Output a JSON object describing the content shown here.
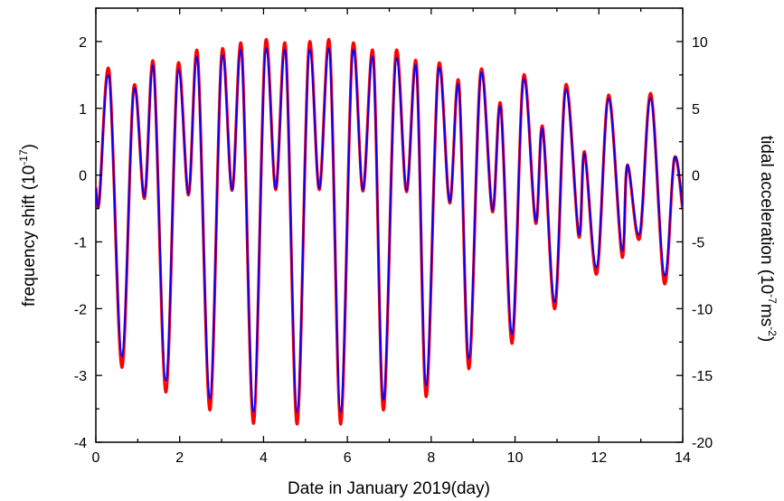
{
  "chart_data": {
    "type": "line",
    "xlabel": "Date in January 2019(day)",
    "ylabel_left": {
      "text": "frequency shift (10",
      "sup": "-17",
      "suffix": ")"
    },
    "ylabel_right": {
      "text": "tidal acceleration (10",
      "sup1": "-7",
      "mid": "ms",
      "sup2": "-2",
      "suffix": ")"
    },
    "xlim": [
      0,
      14
    ],
    "ylim_left": [
      -4,
      2.5
    ],
    "ylim_right": [
      -20,
      12.5
    ],
    "x_ticks": [
      0,
      2,
      4,
      6,
      8,
      10,
      12,
      14
    ],
    "y_ticks_left": [
      -4,
      -3,
      -2,
      -1,
      0,
      1,
      2
    ],
    "y_ticks_right": [
      -20,
      -15,
      -10,
      -5,
      0,
      5,
      10
    ],
    "grid": false,
    "legend": "none",
    "series": [
      {
        "color": "#ff0000",
        "x": [
          0.0,
          0.08,
          0.32,
          0.62,
          0.9,
          1.16,
          1.38,
          1.67,
          1.95,
          2.21,
          2.43,
          2.72,
          3.0,
          3.25,
          3.48,
          3.76,
          4.04,
          4.29,
          4.53,
          4.8,
          5.08,
          5.33,
          5.58,
          5.84,
          6.12,
          6.37,
          6.62,
          6.86,
          7.15,
          7.41,
          7.65,
          7.88,
          8.17,
          8.44,
          8.66,
          8.9,
          9.18,
          9.46,
          9.66,
          9.93,
          10.2,
          10.49,
          10.66,
          10.95,
          11.21,
          11.52,
          11.66,
          11.95,
          12.23,
          12.55,
          12.68,
          12.97,
          13.24,
          13.56,
          13.8,
          14.0
        ],
        "y": [
          -0.18,
          -0.4,
          1.55,
          -2.88,
          1.3,
          -0.35,
          1.65,
          -3.25,
          1.62,
          -0.3,
          1.8,
          -3.52,
          1.82,
          -0.23,
          1.9,
          -3.72,
          1.95,
          -0.22,
          1.9,
          -3.73,
          1.92,
          -0.22,
          1.95,
          -3.73,
          1.9,
          -0.24,
          1.8,
          -3.52,
          1.8,
          -0.25,
          1.65,
          -3.32,
          1.62,
          -0.42,
          1.38,
          -2.9,
          1.55,
          -0.55,
          1.05,
          -2.52,
          1.48,
          -0.72,
          0.72,
          -2.0,
          1.35,
          -0.92,
          0.35,
          -1.48,
          1.2,
          -1.22,
          0.15,
          -0.95,
          1.22,
          -1.62,
          0.25,
          -0.52
        ]
      },
      {
        "color": "#0000ff",
        "x": [
          0.0,
          0.08,
          0.32,
          0.62,
          0.9,
          1.16,
          1.38,
          1.67,
          1.95,
          2.21,
          2.43,
          2.72,
          3.0,
          3.25,
          3.48,
          3.76,
          4.04,
          4.29,
          4.53,
          4.8,
          5.08,
          5.33,
          5.58,
          5.84,
          6.12,
          6.37,
          6.62,
          6.86,
          7.15,
          7.41,
          7.65,
          7.88,
          8.17,
          8.44,
          8.66,
          8.9,
          9.18,
          9.46,
          9.66,
          9.93,
          10.2,
          10.49,
          10.66,
          10.95,
          11.21,
          11.52,
          11.66,
          11.95,
          12.23,
          12.55,
          12.68,
          12.97,
          13.24,
          13.56,
          13.8,
          14.0
        ],
        "y": [
          -0.2,
          -0.38,
          1.45,
          -2.72,
          1.25,
          -0.32,
          1.58,
          -3.08,
          1.52,
          -0.28,
          1.7,
          -3.35,
          1.72,
          -0.22,
          1.8,
          -3.55,
          1.82,
          -0.2,
          1.8,
          -3.55,
          1.8,
          -0.2,
          1.82,
          -3.55,
          1.8,
          -0.22,
          1.7,
          -3.37,
          1.68,
          -0.23,
          1.58,
          -3.15,
          1.55,
          -0.4,
          1.32,
          -2.75,
          1.5,
          -0.52,
          1.0,
          -2.38,
          1.42,
          -0.68,
          0.68,
          -1.9,
          1.28,
          -0.88,
          0.32,
          -1.38,
          1.15,
          -1.12,
          0.15,
          -0.88,
          1.15,
          -1.5,
          0.25,
          -0.48
        ]
      }
    ]
  }
}
